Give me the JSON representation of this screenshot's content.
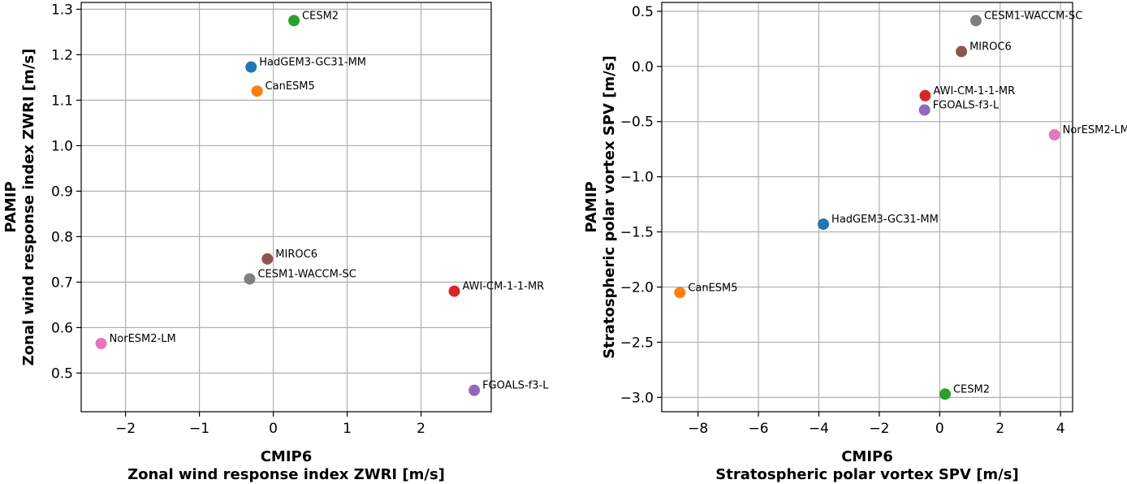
{
  "chart_data": [
    {
      "type": "scatter",
      "xlabel": [
        "CMIP6",
        "Zonal wind response index ZWRI [m/s]"
      ],
      "ylabel": [
        "PAMIP",
        "Zonal wind response index ZWRI [m/s]"
      ],
      "xlim": [
        -2.6,
        2.95
      ],
      "ylim": [
        0.415,
        1.315
      ],
      "xticks": [
        -2,
        -1,
        0,
        1,
        2
      ],
      "xtick_labels": [
        "−2",
        "−1",
        "0",
        "1",
        "2"
      ],
      "yticks": [
        0.5,
        0.6,
        0.7,
        0.8,
        0.9,
        1.0,
        1.1,
        1.2,
        1.3
      ],
      "ytick_labels": [
        "0.5",
        "0.6",
        "0.7",
        "0.8",
        "0.9",
        "1.0",
        "1.1",
        "1.2",
        "1.3"
      ],
      "grid": true,
      "points": [
        {
          "name": "HadGEM3-GC31-MM",
          "x": -0.3,
          "y": 1.173,
          "color": "#1f77b4"
        },
        {
          "name": "CanESM5",
          "x": -0.22,
          "y": 1.12,
          "color": "#ff7f0e"
        },
        {
          "name": "CESM2",
          "x": 0.28,
          "y": 1.275,
          "color": "#2ca02c"
        },
        {
          "name": "AWI-CM-1-1-MR",
          "x": 2.45,
          "y": 0.68,
          "color": "#d62728"
        },
        {
          "name": "FGOALS-f3-L",
          "x": 2.72,
          "y": 0.462,
          "color": "#9467bd"
        },
        {
          "name": "MIROC6",
          "x": -0.08,
          "y": 0.751,
          "color": "#8c564b"
        },
        {
          "name": "NorESM2-LM",
          "x": -2.33,
          "y": 0.565,
          "color": "#e377c2"
        },
        {
          "name": "CESM1-WACCM-SC",
          "x": -0.32,
          "y": 0.707,
          "color": "#7f7f7f"
        }
      ]
    },
    {
      "type": "scatter",
      "xlabel": [
        "CMIP6",
        "Stratospheric polar vortex SPV [m/s]"
      ],
      "ylabel": [
        "PAMIP",
        "Stratospheric polar vortex SPV [m/s]"
      ],
      "xlim": [
        -9.2,
        4.4
      ],
      "ylim": [
        -3.13,
        0.58
      ],
      "xticks": [
        -8,
        -6,
        -4,
        -2,
        0,
        2,
        4
      ],
      "xtick_labels": [
        "−8",
        "−6",
        "−4",
        "−2",
        "0",
        "2",
        "4"
      ],
      "yticks": [
        -3.0,
        -2.5,
        -2.0,
        -1.5,
        -1.0,
        -0.5,
        0.0,
        0.5
      ],
      "ytick_labels": [
        "−3.0",
        "−2.5",
        "−2.0",
        "−1.5",
        "−1.0",
        "−0.5",
        "0.0",
        "0.5"
      ],
      "grid": true,
      "points": [
        {
          "name": "HadGEM3-GC31-MM",
          "x": -3.85,
          "y": -1.43,
          "color": "#1f77b4"
        },
        {
          "name": "CanESM5",
          "x": -8.6,
          "y": -2.05,
          "color": "#ff7f0e"
        },
        {
          "name": "CESM2",
          "x": 0.18,
          "y": -2.97,
          "color": "#2ca02c"
        },
        {
          "name": "AWI-CM-1-1-MR",
          "x": -0.48,
          "y": -0.265,
          "color": "#d62728"
        },
        {
          "name": "FGOALS-f3-L",
          "x": -0.5,
          "y": -0.395,
          "color": "#9467bd"
        },
        {
          "name": "MIROC6",
          "x": 0.72,
          "y": 0.135,
          "color": "#8c564b"
        },
        {
          "name": "NorESM2-LM",
          "x": 3.8,
          "y": -0.62,
          "color": "#e377c2"
        },
        {
          "name": "CESM1-WACCM-SC",
          "x": 1.2,
          "y": 0.415,
          "color": "#7f7f7f"
        }
      ]
    }
  ]
}
